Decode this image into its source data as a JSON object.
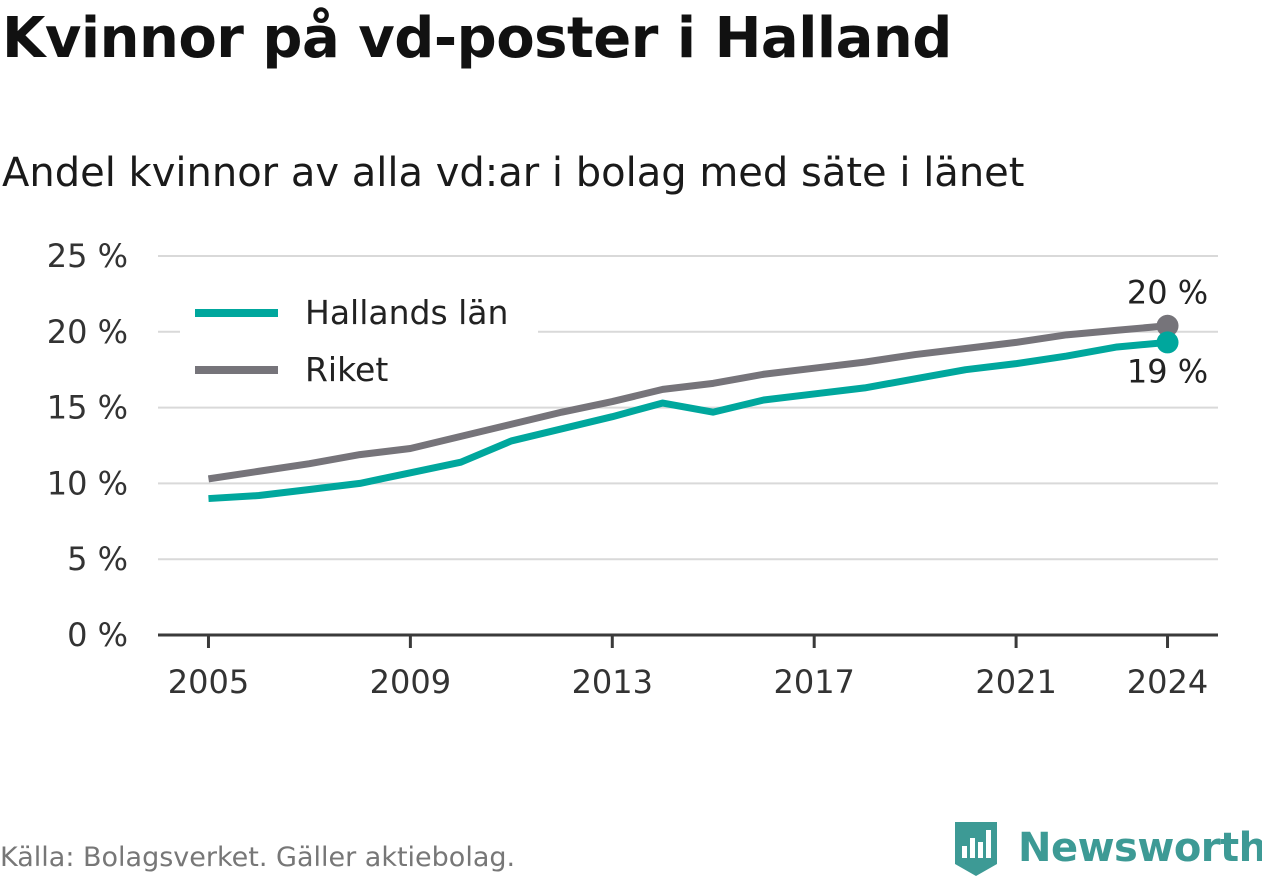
{
  "title": "Kvinnor på vd-poster i Halland",
  "subtitle": "Andel kvinnor av alla vd:ar i bolag med säte i länet",
  "source": "Källa: Bolagsverket. Gäller aktiebolag.",
  "brand": {
    "name": "Newsworthy",
    "icon": "newsworthy-logo-icon",
    "color": "#3d9a95"
  },
  "chart_data": {
    "type": "line",
    "title": "Kvinnor på vd-poster i Halland",
    "subtitle": "Andel kvinnor av alla vd:ar i bolag med säte i länet",
    "xlabel": "",
    "ylabel": "",
    "x": [
      2005,
      2006,
      2007,
      2008,
      2009,
      2010,
      2011,
      2012,
      2013,
      2014,
      2015,
      2016,
      2017,
      2018,
      2019,
      2020,
      2021,
      2022,
      2023,
      2024
    ],
    "x_ticks": [
      "2005",
      "2009",
      "2013",
      "2017",
      "2021",
      "2024"
    ],
    "xlim": [
      2004,
      2025
    ],
    "ylim": [
      0,
      25
    ],
    "y_ticks": [
      "0 %",
      "5 %",
      "10 %",
      "15 %",
      "20 %",
      "25 %"
    ],
    "grid": "horizontal",
    "legend_position": "top-left",
    "series": [
      {
        "name": "Hallands län",
        "color": "#00a79d",
        "values": [
          9.0,
          9.2,
          9.6,
          10.0,
          10.7,
          11.4,
          12.8,
          13.6,
          14.4,
          15.3,
          14.7,
          15.5,
          15.9,
          16.3,
          16.9,
          17.5,
          17.9,
          18.4,
          19.0,
          19.3
        ],
        "end_label": "19 %"
      },
      {
        "name": "Riket",
        "color": "#76747a",
        "values": [
          10.3,
          10.8,
          11.3,
          11.9,
          12.3,
          13.1,
          13.9,
          14.7,
          15.4,
          16.2,
          16.6,
          17.2,
          17.6,
          18.0,
          18.5,
          18.9,
          19.3,
          19.8,
          20.1,
          20.4
        ],
        "end_label": "20 %"
      }
    ]
  }
}
